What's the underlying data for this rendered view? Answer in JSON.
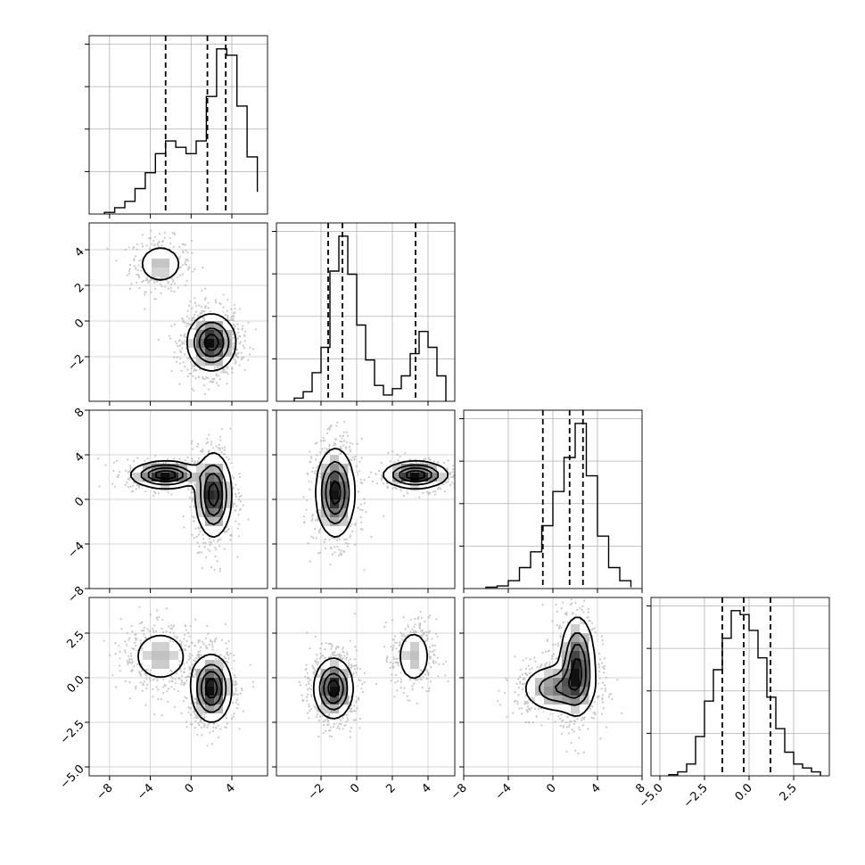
{
  "chart_data": {
    "type": "corner",
    "grid": true,
    "parameters": [
      {
        "index": 0,
        "range": [
          -10,
          7.5
        ],
        "ticks": [
          -8,
          -4,
          0,
          4
        ],
        "tick_labels": [
          "−8",
          "−4",
          "0",
          "4"
        ],
        "quantiles": [
          -2.5,
          1.6,
          3.4
        ]
      },
      {
        "index": 1,
        "range": [
          -4.5,
          5.5
        ],
        "ticks": [
          -2,
          0,
          2,
          4
        ],
        "tick_labels": [
          "−2",
          "0",
          "2",
          "4"
        ],
        "quantiles": [
          -1.6,
          -0.8,
          3.3
        ]
      },
      {
        "index": 2,
        "range": [
          -8,
          8
        ],
        "ticks": [
          -8,
          -4,
          0,
          4,
          8
        ],
        "tick_labels": [
          "−8",
          "−4",
          "0",
          "4",
          "8"
        ],
        "quantiles": [
          -0.9,
          1.5,
          2.7
        ]
      },
      {
        "index": 3,
        "range": [
          -5.5,
          4.5
        ],
        "ticks": [
          -5.0,
          -2.5,
          0.0,
          2.5
        ],
        "tick_labels": [
          "−5.0",
          "−2.5",
          "0.0",
          "2.5"
        ],
        "quantiles": [
          -1.5,
          -0.3,
          1.2
        ]
      }
    ],
    "histograms": [
      {
        "param": 0,
        "bin_edges": [
          -8.5,
          -7.5,
          -6.5,
          -5.5,
          -4.5,
          -3.5,
          -2.5,
          -1.5,
          -0.5,
          0.5,
          1.5,
          2.5,
          3.5,
          4.5,
          5.5,
          6.5
        ],
        "counts": [
          0.5,
          2,
          4,
          8,
          13,
          19,
          23,
          21,
          19,
          23,
          37,
          52,
          50,
          34,
          18,
          7
        ]
      },
      {
        "param": 1,
        "bin_edges": [
          -3.5,
          -3.0,
          -2.5,
          -2.0,
          -1.5,
          -1.0,
          -0.5,
          0.0,
          0.5,
          1.0,
          1.5,
          2.0,
          2.5,
          3.0,
          3.5,
          4.0,
          4.5,
          5.0
        ],
        "counts": [
          1,
          3,
          9,
          17,
          41,
          52,
          40,
          24,
          13,
          5,
          2,
          4,
          8,
          15,
          22,
          17,
          8
        ]
      },
      {
        "param": 2,
        "bin_edges": [
          -6,
          -5,
          -4,
          -3,
          -2,
          -1,
          0,
          1,
          2,
          3,
          4,
          5,
          6,
          7
        ],
        "counts": [
          0.5,
          1,
          3,
          8,
          14,
          24,
          37,
          50,
          63,
          43,
          20,
          8,
          3,
          0.5
        ]
      },
      {
        "param": 3,
        "bin_edges": [
          -4.5,
          -4.0,
          -3.5,
          -3.0,
          -2.5,
          -2.0,
          -1.5,
          -1.0,
          -0.5,
          0.0,
          0.5,
          1.0,
          1.5,
          2.0,
          2.5,
          3.0,
          3.5,
          4.0
        ],
        "counts": [
          0.3,
          1,
          3,
          10,
          19,
          27,
          35,
          42,
          41,
          37,
          30,
          20,
          12,
          6,
          3,
          2,
          1
        ]
      }
    ],
    "pairs": [
      {
        "row": 1,
        "col": 0,
        "blobs": [
          {
            "cx": -3.0,
            "cy": 3.2,
            "sx": 1.3,
            "sy": 0.65,
            "peak": 0.35
          },
          {
            "cx": 2.0,
            "cy": -1.2,
            "sx": 1.2,
            "sy": 0.8,
            "peak": 1.0
          }
        ]
      },
      {
        "row": 2,
        "col": 0,
        "blobs": [
          {
            "cx": -2.5,
            "cy": 2.2,
            "sx": 1.7,
            "sy": 0.6,
            "peak": 0.9
          },
          {
            "cx": 2.2,
            "cy": 0.4,
            "sx": 0.9,
            "sy": 1.9,
            "peak": 0.85
          }
        ]
      },
      {
        "row": 2,
        "col": 1,
        "blobs": [
          {
            "cx": -1.2,
            "cy": 0.6,
            "sx": 0.55,
            "sy": 2.0,
            "peak": 0.75
          },
          {
            "cx": 3.3,
            "cy": 2.2,
            "sx": 0.9,
            "sy": 0.6,
            "peak": 0.8
          }
        ]
      },
      {
        "row": 3,
        "col": 0,
        "blobs": [
          {
            "cx": -3.0,
            "cy": 1.2,
            "sx": 1.6,
            "sy": 0.85,
            "peak": 0.35
          },
          {
            "cx": 2.0,
            "cy": -0.6,
            "sx": 1.0,
            "sy": 0.95,
            "peak": 1.0
          }
        ]
      },
      {
        "row": 3,
        "col": 1,
        "blobs": [
          {
            "cx": -1.3,
            "cy": -0.6,
            "sx": 0.55,
            "sy": 0.85,
            "peak": 1.0
          },
          {
            "cx": 3.2,
            "cy": 1.2,
            "sx": 0.55,
            "sy": 0.9,
            "peak": 0.35
          }
        ]
      },
      {
        "row": 3,
        "col": 2,
        "blobs": [
          {
            "cx": 2.2,
            "cy": 0.7,
            "sx": 0.8,
            "sy": 1.4,
            "peak": 0.9
          },
          {
            "cx": 0.3,
            "cy": -0.6,
            "sx": 1.6,
            "sy": 0.7,
            "peak": 0.6
          }
        ]
      }
    ]
  }
}
